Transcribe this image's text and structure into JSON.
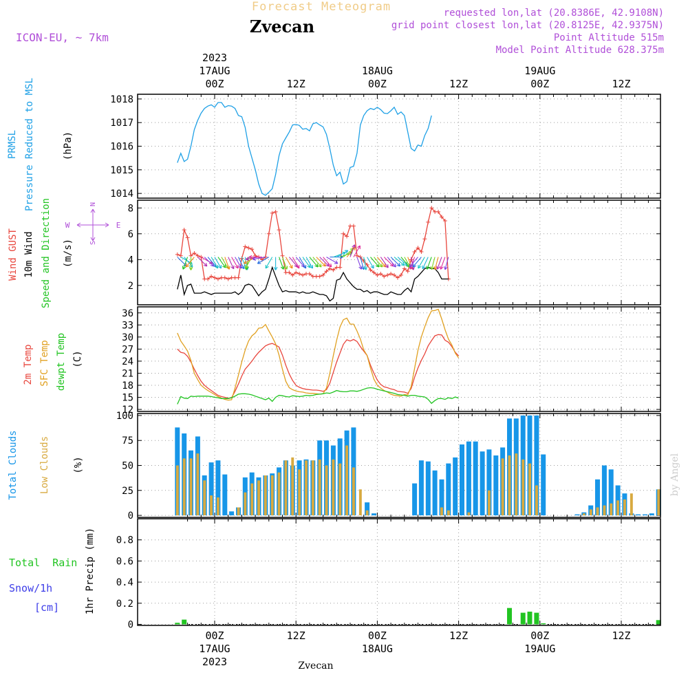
{
  "header": {
    "product": "Forecast Meteogram",
    "station": "Zvecan",
    "model": "ICON-EU, ~ 7km",
    "requested": "requested lon,lat (20.8386E, 42.9108N)",
    "gridpoint": "grid point closest lon,lat (20.8125E, 42.9375N)",
    "point_alt": "Point Altitude 515m",
    "model_alt": "Model Point Altitude 628.375m",
    "credit": "by Angel",
    "footer_station": "Zvecan"
  },
  "colors": {
    "purple": "#b04fd8",
    "orange_title": "#f0cc88",
    "pressure": "#1ea0e6",
    "gust": "#e8453c",
    "wind10m": "#000000",
    "temp2m": "#e8453c",
    "sfc": "#e0a020",
    "dewpt": "#22c422",
    "total_clouds": "#1796e8",
    "low_clouds": "#d8aa40",
    "rain": "#22c422",
    "snow": "#3d3de8"
  },
  "time_axis": {
    "top": [
      {
        "t": 0,
        "line1": "2023",
        "line2": "17AUG",
        "line3": "00Z"
      },
      {
        "t": 12,
        "line1": "",
        "line2": "",
        "line3": "12Z"
      },
      {
        "t": 24,
        "line1": "",
        "line2": "18AUG",
        "line3": "00Z"
      },
      {
        "t": 36,
        "line1": "",
        "line2": "",
        "line3": "12Z"
      },
      {
        "t": 48,
        "line1": "",
        "line2": "19AUG",
        "line3": "00Z"
      },
      {
        "t": 60,
        "line1": "",
        "line2": "",
        "line3": "12Z"
      }
    ],
    "bottom": [
      {
        "t": 0,
        "line1": "00Z",
        "line2": "17AUG",
        "line3": "2023"
      },
      {
        "t": 12,
        "line1": "12Z",
        "line2": "",
        "line3": ""
      },
      {
        "t": 24,
        "line1": "00Z",
        "line2": "18AUG",
        "line3": ""
      },
      {
        "t": 36,
        "line1": "12Z",
        "line2": "",
        "line3": ""
      },
      {
        "t": 48,
        "line1": "00Z",
        "line2": "19AUG",
        "line3": ""
      },
      {
        "t": 60,
        "line1": "12Z",
        "line2": "",
        "line3": ""
      }
    ]
  },
  "compass": {
    "n": "N",
    "s": "S",
    "w": "W",
    "e": "E"
  },
  "chart_data": [
    {
      "type": "line",
      "panel": "pressure",
      "labels": {
        "lines": [
          "PRMSL",
          "Pressure Reduced to MSL"
        ],
        "unit": "(hPa)"
      },
      "ylim": [
        1013.8,
        1018.2
      ],
      "yticks": [
        1014,
        1015,
        1016,
        1017,
        1018
      ],
      "x_hours_start": -5.5,
      "x_step_hours": 0.5,
      "series": [
        {
          "values": [
            1015.3,
            1015.7,
            1015.35,
            1015.45,
            1016.0,
            1016.7,
            1017.1,
            1017.4,
            1017.6,
            1017.7,
            1017.75,
            1017.65,
            1017.85,
            1017.85,
            1017.65,
            1017.72,
            1017.7,
            1017.6,
            1017.3,
            1017.25,
            1016.8,
            1016.0,
            1015.5,
            1015.0,
            1014.4,
            1014.0,
            1013.92,
            1014.05,
            1014.2,
            1014.8,
            1015.6,
            1016.1,
            1016.35,
            1016.6,
            1016.9,
            1016.92,
            1016.88,
            1016.72,
            1016.75,
            1016.65,
            1016.95,
            1017.0,
            1016.9,
            1016.82,
            1016.5,
            1015.9,
            1015.2,
            1014.75,
            1014.9,
            1014.4,
            1014.5,
            1015.1,
            1015.15,
            1015.7,
            1016.9,
            1017.3,
            1017.5,
            1017.6,
            1017.55,
            1017.65,
            1017.55,
            1017.4,
            1017.38,
            1017.5,
            1017.65,
            1017.35,
            1017.45,
            1017.3,
            1016.6,
            1015.9,
            1015.8,
            1016.05,
            1016.0,
            1016.45,
            1016.75,
            1017.3
          ]
        }
      ]
    },
    {
      "type": "line",
      "panel": "wind",
      "labels": {
        "gust": "Wind GUST",
        "wind": "10m Wind",
        "dir": "Speed and Direction",
        "unit": "(m/s)"
      },
      "ylim": [
        0.5,
        8.6
      ],
      "yticks": [
        2,
        4,
        6,
        8
      ],
      "x_hours_start": -5.5,
      "x_step_hours": 0.5,
      "series": [
        {
          "name": "gust",
          "values": [
            4.4,
            4.3,
            6.3,
            5.7,
            4.3,
            4.5,
            4.3,
            4.2,
            2.5,
            2.5,
            2.7,
            2.6,
            2.5,
            2.6,
            2.6,
            2.5,
            2.6,
            2.6,
            2.6,
            4.1,
            5.0,
            4.9,
            4.8,
            4.3,
            4.2,
            4.0,
            4.2,
            6.0,
            7.6,
            7.7,
            6.3,
            4.3,
            3.0,
            3.0,
            2.8,
            3.0,
            2.9,
            2.8,
            2.9,
            2.9,
            2.7,
            2.7,
            2.7,
            2.8,
            3.1,
            3.3,
            3.2,
            3.4,
            3.4,
            6.0,
            5.8,
            6.6,
            6.6,
            4.3,
            4.2,
            3.9,
            3.6,
            3.2,
            3.0,
            2.8,
            2.9,
            2.7,
            2.8,
            2.9,
            2.8,
            2.6,
            2.8,
            3.3,
            3.1,
            4.0,
            4.6,
            4.9,
            4.6,
            5.6,
            6.9,
            8.0,
            7.7,
            7.7,
            7.3,
            7.0,
            2.5
          ]
        },
        {
          "name": "10m",
          "values": [
            1.7,
            2.8,
            1.3,
            2.0,
            2.1,
            1.4,
            1.4,
            1.4,
            1.5,
            1.4,
            1.3,
            1.4,
            1.4,
            1.4,
            1.4,
            1.4,
            1.4,
            1.5,
            1.3,
            1.5,
            2.0,
            2.1,
            2.0,
            1.6,
            1.2,
            1.5,
            1.7,
            2.5,
            3.4,
            2.7,
            2.0,
            1.5,
            1.6,
            1.5,
            1.5,
            1.5,
            1.4,
            1.5,
            1.4,
            1.4,
            1.5,
            1.4,
            1.3,
            1.3,
            1.2,
            0.8,
            1.0,
            2.4,
            2.5,
            3.0,
            2.5,
            2.2,
            1.9,
            1.7,
            1.7,
            1.5,
            1.6,
            1.4,
            1.5,
            1.5,
            1.4,
            1.3,
            1.3,
            1.5,
            1.4,
            1.3,
            1.3,
            1.6,
            1.8,
            1.5,
            2.5,
            2.7,
            3.0,
            3.3,
            3.4,
            3.3,
            3.3,
            3.0,
            2.5,
            2.5,
            2.5
          ]
        },
        {
          "name": "direction_deg",
          "values": [
            315,
            300,
            320,
            20,
            0,
            40,
            315,
            300,
            315,
            320,
            330,
            330,
            325,
            330,
            340,
            335,
            330,
            330,
            335,
            340,
            350,
            10,
            30,
            60,
            80,
            90,
            80,
            60,
            30,
            0,
            340,
            340,
            330,
            320,
            330,
            320,
            330,
            325,
            330,
            320,
            320,
            315,
            315,
            320,
            300,
            270,
            250,
            240,
            250,
            230,
            220,
            200,
            210,
            340,
            345,
            350,
            330,
            320,
            320,
            320,
            325,
            315,
            320,
            315,
            310,
            310,
            320,
            330,
            340,
            350,
            20,
            40,
            40,
            30,
            25,
            20,
            15,
            15,
            20,
            20,
            15
          ]
        }
      ]
    },
    {
      "type": "line",
      "panel": "temperature",
      "labels": {
        "t2m": "2m Temp",
        "sfc": "SFC Temp",
        "dew": "dewpt Temp",
        "unit": "(C)"
      },
      "ylim": [
        11.5,
        37.5
      ],
      "yticks": [
        12,
        15,
        18,
        21,
        24,
        27,
        30,
        33,
        36
      ],
      "x_hours_start": -5.5,
      "x_step_hours": 0.5,
      "series": [
        {
          "name": "2m",
          "values": [
            27.0,
            26.2,
            26.0,
            25.2,
            23.8,
            22.0,
            20.4,
            19.0,
            18.0,
            17.3,
            16.7,
            16.1,
            15.5,
            15.2,
            15.0,
            14.8,
            14.9,
            16.5,
            18.3,
            20.3,
            22.0,
            23.0,
            24.0,
            25.2,
            26.2,
            27.0,
            27.8,
            28.2,
            28.4,
            28.0,
            27.5,
            25.5,
            23.0,
            20.8,
            19.2,
            18.0,
            17.5,
            17.2,
            17.0,
            16.9,
            16.8,
            16.8,
            16.7,
            16.5,
            16.9,
            18.5,
            21.2,
            23.8,
            26.0,
            28.2,
            29.3,
            29.0,
            29.4,
            28.9,
            27.6,
            26.5,
            25.4,
            23.0,
            21.0,
            19.3,
            18.2,
            17.6,
            17.4,
            17.1,
            16.9,
            16.5,
            16.4,
            16.3,
            16.0,
            17.2,
            20.0,
            22.3,
            24.2,
            25.8,
            27.8,
            29.1,
            30.3,
            30.6,
            30.5,
            29.2,
            28.7,
            27.6,
            26.2,
            25.3
          ]
        },
        {
          "name": "sfc",
          "values": [
            31.0,
            29.0,
            27.8,
            26.5,
            24.2,
            21.0,
            19.4,
            18.0,
            17.3,
            16.7,
            16.2,
            15.7,
            15.2,
            14.8,
            14.5,
            14.3,
            14.4,
            17.3,
            20.5,
            23.8,
            26.7,
            29.0,
            30.3,
            31.0,
            32.2,
            32.3,
            33.1,
            31.5,
            30.0,
            28.3,
            25.5,
            22.0,
            19.0,
            17.4,
            16.9,
            16.6,
            16.4,
            16.3,
            16.1,
            16.0,
            16.0,
            15.9,
            15.8,
            15.9,
            17.3,
            21.0,
            25.3,
            29.2,
            32.5,
            34.3,
            34.7,
            33.2,
            33.2,
            31.5,
            29.5,
            26.8,
            25.4,
            22.3,
            19.5,
            18.0,
            17.3,
            16.7,
            16.3,
            15.8,
            15.5,
            15.4,
            15.3,
            15.7,
            15.6,
            17.7,
            22.2,
            26.7,
            30.0,
            32.5,
            34.8,
            36.5,
            36.6,
            36.9,
            34.5,
            31.8,
            29.5,
            28.0,
            26.0,
            24.8
          ]
        },
        {
          "name": "dewpt",
          "values": [
            13.3,
            15.2,
            14.8,
            14.7,
            15.3,
            15.2,
            15.3,
            15.3,
            15.3,
            15.3,
            15.2,
            15.0,
            14.9,
            14.7,
            14.7,
            14.7,
            14.9,
            15.3,
            15.8,
            15.9,
            15.9,
            15.8,
            15.6,
            15.3,
            15.0,
            14.7,
            14.4,
            14.8,
            14.0,
            15.0,
            15.5,
            15.4,
            15.2,
            15.1,
            15.4,
            15.3,
            15.2,
            15.3,
            15.5,
            15.4,
            15.5,
            15.7,
            15.8,
            15.9,
            16.1,
            16.0,
            16.3,
            16.7,
            16.5,
            16.4,
            16.4,
            16.6,
            16.6,
            16.5,
            16.7,
            17.0,
            17.3,
            17.4,
            17.3,
            17.0,
            16.8,
            16.6,
            16.4,
            16.2,
            16.0,
            15.7,
            15.6,
            15.5,
            15.3,
            15.5,
            15.5,
            15.3,
            15.2,
            15.1,
            14.5,
            13.5,
            14.2,
            14.7,
            14.7,
            14.5,
            14.9,
            14.7,
            15.1,
            14.8
          ]
        }
      ]
    },
    {
      "type": "bar",
      "panel": "clouds",
      "labels": {
        "total": "Total Clouds",
        "low": "Low Clouds",
        "unit": "(%)"
      },
      "ylim": [
        -2,
        102
      ],
      "yticks": [
        0,
        25,
        50,
        75,
        100
      ],
      "x_hours_start": -5.5,
      "x_step_hours": 1,
      "series": [
        {
          "name": "total",
          "values": [
            88,
            82,
            65,
            79,
            40,
            53,
            55,
            41,
            4,
            8,
            38,
            43,
            38,
            40,
            42,
            48,
            55,
            50,
            55,
            56,
            55,
            75,
            75,
            70,
            77,
            85,
            88,
            0,
            13,
            2,
            0,
            0,
            0,
            0,
            0,
            32,
            55,
            54,
            45,
            36,
            52,
            58,
            71,
            74,
            74,
            64,
            66,
            60,
            68,
            97,
            97,
            100,
            100,
            100,
            61,
            0,
            0,
            0,
            0,
            1,
            3,
            10,
            36,
            50,
            46,
            30,
            22,
            2,
            1,
            1,
            2,
            26,
            58,
            65,
            70,
            86,
            100,
            100,
            100,
            100,
            100
          ]
        },
        {
          "name": "low",
          "values": [
            50,
            57,
            57,
            62,
            35,
            20,
            18,
            0,
            0,
            8,
            23,
            32,
            35,
            40,
            40,
            43,
            55,
            58,
            46,
            55,
            55,
            56,
            50,
            56,
            52,
            70,
            48,
            26,
            5,
            0,
            0,
            0,
            0,
            0,
            0,
            0,
            0,
            0,
            0,
            8,
            5,
            0,
            0,
            3,
            0,
            0,
            25,
            0,
            57,
            60,
            62,
            56,
            52,
            30,
            0,
            0,
            0,
            0,
            0,
            0,
            2,
            6,
            8,
            10,
            12,
            15,
            16,
            22,
            0,
            0,
            0,
            26,
            48,
            50,
            54,
            68,
            57,
            47,
            25,
            9,
            5
          ]
        }
      ]
    },
    {
      "type": "bar",
      "panel": "precip",
      "labels": {
        "rain": "Total  Rain",
        "snow": "Snow/1h",
        "snowunit": "[cm]",
        "unit": "1hr Precip (mm)"
      },
      "ylim": [
        -0.01,
        1.0
      ],
      "yticks": [
        0,
        0.2,
        0.4,
        0.6,
        0.8
      ],
      "x_hours_start": -5.5,
      "x_step_hours": 1,
      "series": [
        {
          "name": "rain",
          "values": [
            0.015,
            0.045,
            0,
            0,
            0,
            0,
            0,
            0,
            0,
            0,
            0,
            0,
            0,
            0,
            0,
            0,
            0,
            0,
            0,
            0,
            0,
            0,
            0,
            0,
            0,
            0,
            0,
            0,
            0,
            0,
            0,
            0,
            0,
            0,
            0,
            0,
            0,
            0,
            0,
            0,
            0,
            0,
            0,
            0,
            0,
            0,
            0,
            0,
            0,
            0.155,
            0,
            0.11,
            0.12,
            0.11,
            0.01,
            0,
            0,
            0,
            0,
            0,
            0,
            0,
            0,
            0,
            0,
            0,
            0,
            0,
            0,
            0,
            0,
            0.04,
            0.025,
            0.025,
            0.22,
            0.11,
            0.14,
            0.045,
            0
          ]
        },
        {
          "name": "snow",
          "values": []
        }
      ]
    }
  ]
}
